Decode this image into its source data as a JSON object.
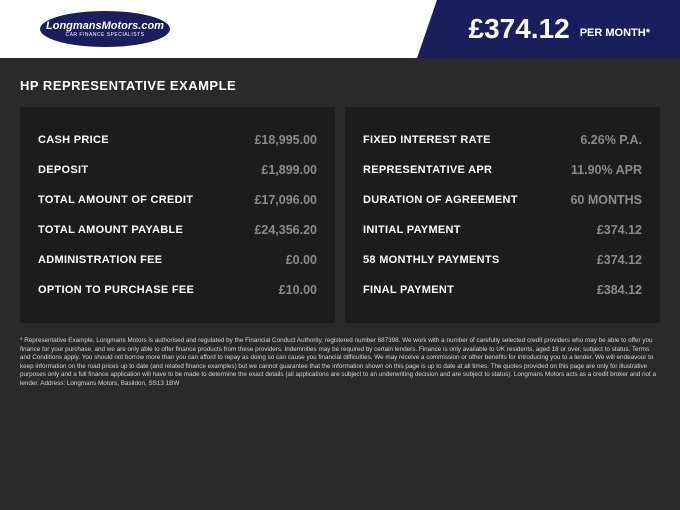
{
  "header": {
    "logo_top": "LongmansMotors.com",
    "logo_bottom": "CAR FINANCE SPECIALISTS",
    "price": "£374.12",
    "per_month": "PER MONTH*"
  },
  "title": "HP REPRESENTATIVE EXAMPLE",
  "left": [
    {
      "label": "CASH PRICE",
      "value": "£18,995.00"
    },
    {
      "label": "DEPOSIT",
      "value": "£1,899.00"
    },
    {
      "label": "TOTAL AMOUNT OF CREDIT",
      "value": "£17,096.00"
    },
    {
      "label": "TOTAL AMOUNT PAYABLE",
      "value": "£24,356.20"
    },
    {
      "label": "ADMINISTRATION FEE",
      "value": "£0.00"
    },
    {
      "label": "OPTION TO PURCHASE FEE",
      "value": "£10.00"
    }
  ],
  "right": [
    {
      "label": "FIXED INTEREST RATE",
      "value": "6.26% P.A."
    },
    {
      "label": "REPRESENTATIVE APR",
      "value": "11.90% APR"
    },
    {
      "label": "DURATION OF AGREEMENT",
      "value": "60 MONTHS"
    },
    {
      "label": "INITIAL PAYMENT",
      "value": "£374.12"
    },
    {
      "label": "58 MONTHLY PAYMENTS",
      "value": "£374.12"
    },
    {
      "label": "FINAL PAYMENT",
      "value": "£384.12"
    }
  ],
  "footer": "* Representative Example. Longmans Motors is authorised and regulated by the Financial Conduct Authority, registered number 687398. We work with a number of carefully selected credit providers who may be able to offer you finance for your purchase, and we are only able to offer finance products from these providers. Indemnities may be required by certain lenders. Finance is only available to UK residents, aged 18 or over, subject to status. Terms and Conditions apply. You should not borrow more than you can afford to repay as doing so can cause you financial difficulties. We may receive a commission or other benefits for introducing you to a lender. We will endeavour to keep information on the road prices up to date (and related finance examples) but we cannot guarantee that the information shown on this page is up to date at all times. The quotes provided on this page are only for illustrative purposes only and a full finance application will have to be made to determine the exact details (all applications are subject to an underwriting decision and are subject to status). Longmans Motors acts as a credit broker and not a lender. Address:  Longmans Motors, Basildon, SS13 1BW"
}
